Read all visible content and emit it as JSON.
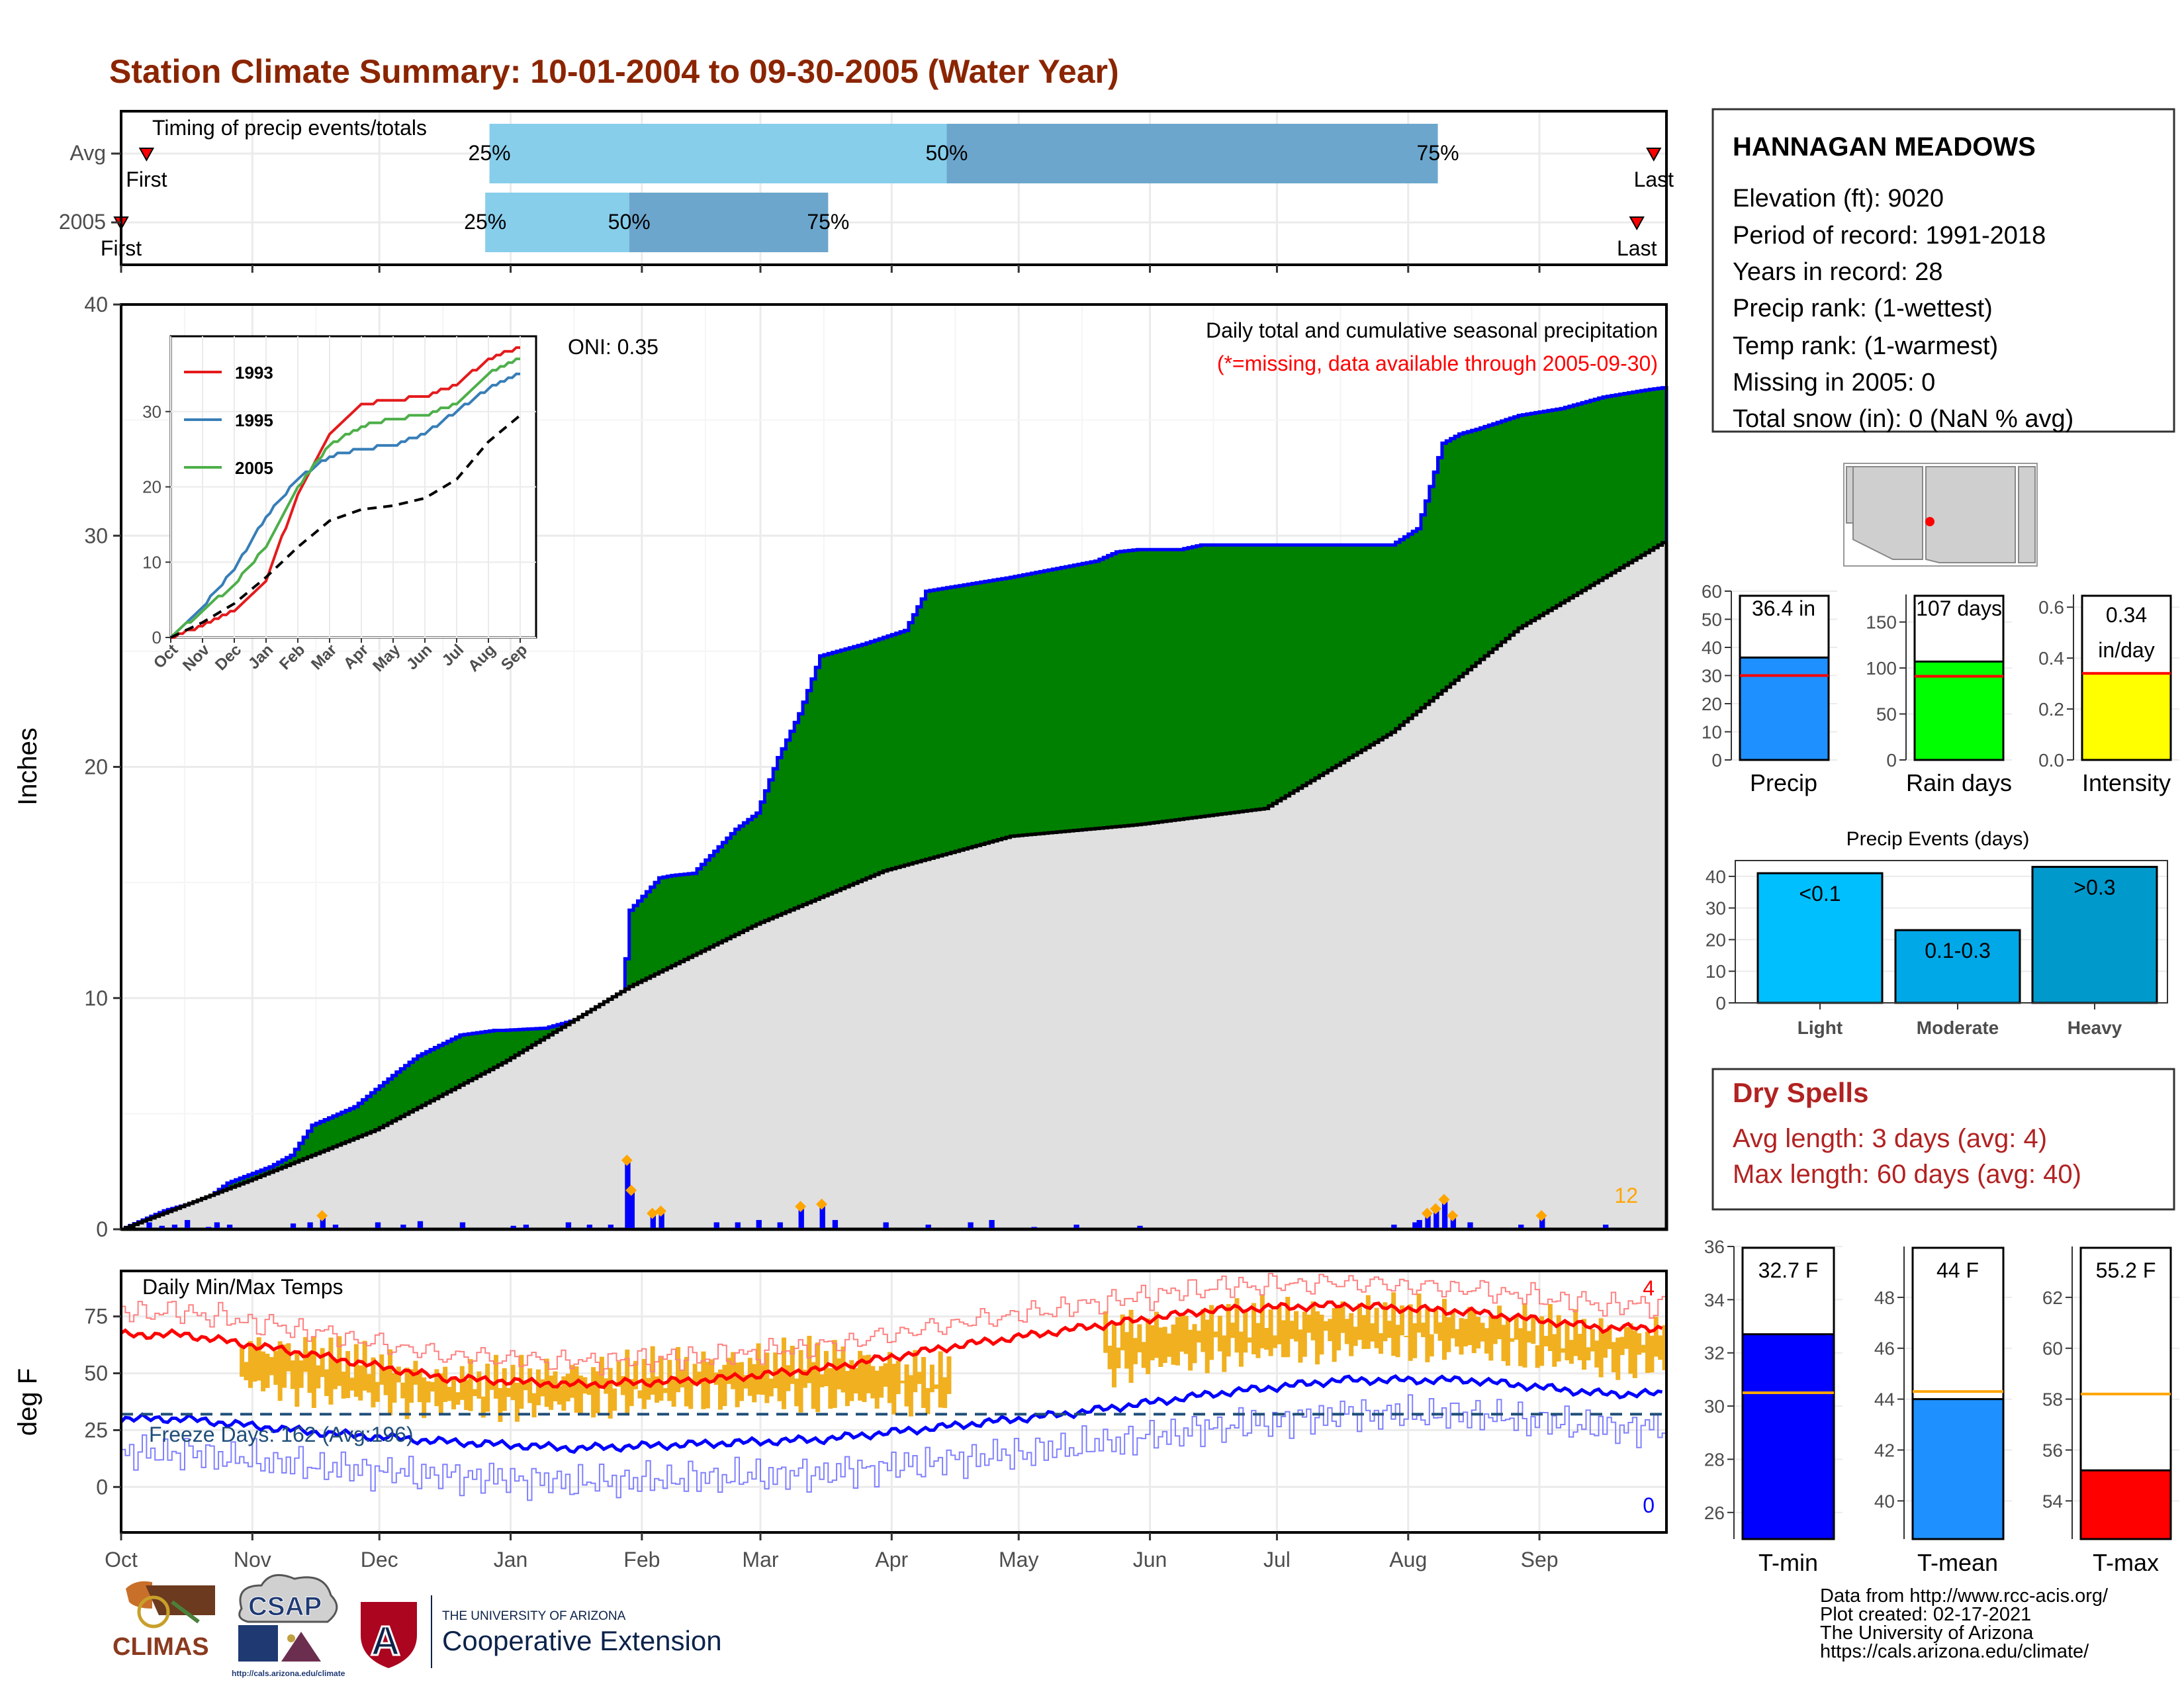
{
  "title": "Station Climate Summary: 10-01-2004 to 09-30-2005 (Water Year)",
  "colors": {
    "title": "#8b2500",
    "cum_fill": "#008000",
    "cum_line": "#0000ff",
    "avg_fill": "#e0e0e0",
    "bar_light": "#87ceeb",
    "bar_dark": "#6ca6cd",
    "precip_bar": "#1e90ff",
    "rain_bar": "#00ff00",
    "intensity_bar": "#ffff00",
    "events_light": "#00bfff",
    "events_mod": "#00a8e8",
    "events_heavy": "#0099cc",
    "tmin_bar": "#0000ff",
    "tmean_bar": "#1e90ff",
    "tmax_bar": "#ff0000",
    "dry": "#b22222",
    "temp_range": "#f0b020"
  },
  "timing": {
    "title": "Timing of precip events/totals",
    "rows": [
      {
        "label": "Avg",
        "first_label": "First",
        "last_label": "Last",
        "first_date": "2004-10-07",
        "last_date": "2005-09-28",
        "q25_date": "2004-12-27",
        "q50_date": "2005-04-14",
        "q75_date": "2005-08-08",
        "q25": "25%",
        "q50": "50%",
        "q75": "75%"
      },
      {
        "label": "2005",
        "first_label": "First",
        "last_label": "Last",
        "first_date": "2004-10-01",
        "last_date": "2005-09-24",
        "q25_date": "2004-12-26",
        "q50_date": "2005-01-29",
        "q75_date": "2005-03-17",
        "q25": "25%",
        "q50": "50%",
        "q75": "75%"
      }
    ]
  },
  "main_chart": {
    "ylabel": "Inches",
    "y_ticks": [
      "0",
      "10",
      "20",
      "30",
      "40"
    ],
    "x_ticks": [
      "Oct",
      "Nov",
      "Dec",
      "Jan",
      "Feb",
      "Mar",
      "Apr",
      "May",
      "Jun",
      "Jul",
      "Aug",
      "Sep"
    ],
    "subtitle": "Daily total and cumulative seasonal precipitation",
    "missing_note": "(*=missing, data available through 2005-09-30)",
    "oni": "ONI: 0.35",
    "count_label": "12"
  },
  "chart_data": [
    {
      "type": "area",
      "title": "Daily total and cumulative seasonal precipitation",
      "ylabel": "Inches",
      "ylim": [
        0,
        40
      ],
      "x_range": [
        "2004-10-01",
        "2005-09-30"
      ],
      "series": [
        {
          "name": "2005",
          "x_days": [
            0,
            10,
            20,
            25,
            35,
            40,
            45,
            55,
            65,
            70,
            80,
            88,
            90,
            100,
            118,
            120,
            127,
            130,
            135,
            145,
            150,
            155,
            160,
            165,
            175,
            180,
            185,
            190,
            200,
            210,
            230,
            235,
            240,
            250,
            255,
            265,
            270,
            280,
            300,
            306,
            308,
            312,
            316,
            320,
            330,
            340,
            350,
            360,
            364
          ],
          "values": [
            0.0,
            0.8,
            1.3,
            2.0,
            2.7,
            3.2,
            4.5,
            5.3,
            6.8,
            7.5,
            8.4,
            8.6,
            8.6,
            8.7,
            9.6,
            13.8,
            15.2,
            15.3,
            15.4,
            17.3,
            18.0,
            20.4,
            22.3,
            24.8,
            25.3,
            25.6,
            25.9,
            27.6,
            27.9,
            28.2,
            28.9,
            29.3,
            29.4,
            29.4,
            29.6,
            29.6,
            29.6,
            29.6,
            29.6,
            30.3,
            31.5,
            34.0,
            34.4,
            34.6,
            35.2,
            35.5,
            36.0,
            36.3,
            36.4
          ]
        },
        {
          "name": "Average",
          "x_days": [
            0,
            30,
            60,
            90,
            120,
            150,
            180,
            210,
            240,
            270,
            300,
            330,
            364
          ],
          "values": [
            0.0,
            2.1,
            4.3,
            7.2,
            10.5,
            13.2,
            15.5,
            17.0,
            17.5,
            18.2,
            21.5,
            26.0,
            29.7
          ]
        }
      ],
      "daily_bars": {
        "days": [
          6,
          9,
          12,
          15,
          20,
          22,
          25,
          40,
          44,
          47,
          50,
          60,
          66,
          70,
          80,
          92,
          95,
          105,
          110,
          115,
          119,
          120,
          125,
          127,
          140,
          145,
          150,
          155,
          160,
          165,
          168,
          180,
          190,
          200,
          205,
          215,
          225,
          240,
          300,
          305,
          306,
          308,
          310,
          312,
          314,
          318,
          330,
          335,
          350
        ],
        "values": [
          0.3,
          0.15,
          0.2,
          0.4,
          0.1,
          0.3,
          0.2,
          0.25,
          0.3,
          0.5,
          0.2,
          0.3,
          0.2,
          0.35,
          0.3,
          0.15,
          0.2,
          0.3,
          0.2,
          0.2,
          2.9,
          1.6,
          0.6,
          0.7,
          0.3,
          0.3,
          0.4,
          0.3,
          0.9,
          1.0,
          0.4,
          0.3,
          0.2,
          0.3,
          0.4,
          0.1,
          0.2,
          0.15,
          0.2,
          0.3,
          0.4,
          0.6,
          0.8,
          1.2,
          0.5,
          0.3,
          0.2,
          0.5,
          0.2
        ]
      }
    },
    {
      "type": "line",
      "title": "",
      "ylim": [
        0,
        40
      ],
      "x_ticks": [
        "Oct",
        "Nov",
        "Dec",
        "Jan",
        "Feb",
        "Mar",
        "Apr",
        "May",
        "Jun",
        "Jul",
        "Aug",
        "Sep"
      ],
      "y_ticks": [
        "0",
        "10",
        "20",
        "30"
      ],
      "series": [
        {
          "name": "1993",
          "values": [
            0,
            1.5,
            3.5,
            7.5,
            19,
            27,
            31,
            31.5,
            32,
            33.5,
            37,
            38.5
          ]
        },
        {
          "name": "1995",
          "values": [
            0,
            4,
            9,
            16,
            21,
            24,
            25,
            25.5,
            27,
            30,
            33,
            35
          ]
        },
        {
          "name": "2005",
          "values": [
            0,
            3.5,
            7,
            12,
            20,
            25.5,
            28,
            29,
            29.5,
            31,
            35,
            37
          ]
        },
        {
          "name": "",
          "values": [
            0,
            2,
            4.5,
            8,
            12,
            15.5,
            17,
            17.5,
            18.5,
            21,
            26,
            29.5
          ]
        }
      ]
    },
    {
      "type": "line",
      "title": "Daily Min/Max Temps",
      "ylabel": "deg F",
      "ylim": [
        -20,
        95
      ],
      "freeze_line": 32,
      "y_ticks": [
        "0",
        "25",
        "50",
        "75"
      ],
      "monthly_avg_max": [
        67,
        58,
        48,
        45,
        47,
        52,
        62,
        70,
        78,
        80,
        77,
        70
      ],
      "monthly_avg_min": [
        30,
        24,
        20,
        17,
        19,
        21,
        27,
        33,
        41,
        47,
        47,
        41
      ],
      "monthly_actual_max": [
        62,
        60,
        48,
        50,
        54,
        58,
        50,
        68,
        74,
        77,
        75,
        68
      ],
      "monthly_actual_min": [
        35,
        28,
        22,
        22,
        26,
        25,
        24,
        36,
        44,
        48,
        47,
        40
      ]
    },
    {
      "type": "bar",
      "categories": [
        "Precip",
        "Rain days",
        "Intensity"
      ],
      "values": [
        36.4,
        107,
        0.34
      ],
      "averages": [
        30,
        91,
        0.34
      ],
      "ylims": [
        [
          0,
          60
        ],
        [
          0,
          180
        ],
        [
          0,
          0.65
        ]
      ]
    },
    {
      "type": "bar",
      "title": "Precip Events (days)",
      "categories": [
        "Light",
        "Moderate",
        "Heavy"
      ],
      "values": [
        41,
        23,
        43
      ],
      "ylim": [
        0,
        45
      ]
    },
    {
      "type": "bar",
      "categories": [
        "T-min",
        "T-mean",
        "T-max"
      ],
      "values": [
        32.7,
        44,
        55.2
      ],
      "averages": [
        30.5,
        44.3,
        58.2
      ],
      "ylims": [
        [
          25,
          36
        ],
        [
          38.5,
          50
        ],
        [
          52.5,
          64
        ]
      ]
    }
  ],
  "temp_panel": {
    "title": "Daily Min/Max Temps",
    "ylabel": "deg F",
    "freeze_text": "Freeze Days: 162 (Avg:196)",
    "max_count": "4",
    "min_count": "0"
  },
  "station": {
    "name": "HANNAGAN MEADOWS",
    "lines": [
      "Elevation (ft): 9020",
      "Period of record: 1991-2018",
      "Years in record: 28",
      "Precip rank:  (1-wettest)",
      "Temp rank:  (1-warmest)",
      "Missing in 2005: 0",
      "Total snow (in): 0 (NaN % avg)"
    ]
  },
  "summary_bars": {
    "precip": {
      "label": "Precip",
      "value_text": "36.4 in",
      "ticks": [
        "0",
        "10",
        "20",
        "30",
        "40",
        "50",
        "60"
      ]
    },
    "rain": {
      "label": "Rain days",
      "value_text": "107 days",
      "ticks": [
        "0",
        "50",
        "100",
        "150"
      ]
    },
    "intensity": {
      "label": "Intensity",
      "value_text_1": "0.34",
      "value_text_2": "in/day",
      "ticks": [
        "0.0",
        "0.2",
        "0.4",
        "0.6"
      ]
    }
  },
  "events": {
    "title": "Precip Events (days)",
    "ticks": [
      "0",
      "10",
      "20",
      "30",
      "40"
    ],
    "bar_labels": [
      "<0.1",
      "0.1-0.3",
      ">0.3"
    ]
  },
  "dry_spells": {
    "title": "Dry Spells",
    "avg": "Avg length: 3 days (avg: 4)",
    "max": "Max length: 60 days (avg: 40)"
  },
  "temp_bars": {
    "tmin": {
      "label": "T-min",
      "value_text": "32.7 F",
      "ticks": [
        "26",
        "28",
        "30",
        "32",
        "34",
        "36"
      ]
    },
    "tmean": {
      "label": "T-mean",
      "value_text": "44 F",
      "ticks": [
        "40",
        "42",
        "44",
        "46",
        "48"
      ]
    },
    "tmax": {
      "label": "T-max",
      "value_text": "55.2 F",
      "ticks": [
        "54",
        "56",
        "58",
        "60",
        "62"
      ]
    }
  },
  "footer": {
    "lines": [
      "Data from http://www.rcc-acis.org/",
      "Plot created: 02-17-2021",
      "The University of Arizona",
      "https://cals.arizona.edu/climate/"
    ],
    "logos": {
      "climas": "CLIMAS",
      "csap": "CSAP",
      "csap_url": "http://cals.arizona.edu/climate",
      "ua_small": "THE UNIVERSITY OF ARIZONA",
      "ua_big": "Cooperative Extension",
      "ua_letter": "A"
    }
  }
}
